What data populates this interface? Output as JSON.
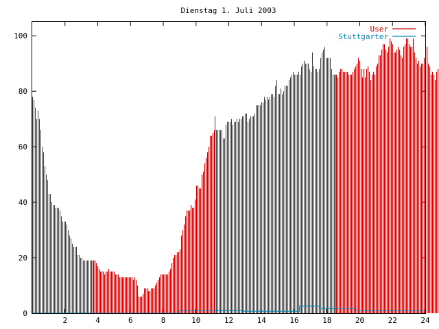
{
  "chart_data": {
    "type": "bar",
    "title": "Dienstag 1. Juli 2003",
    "xlabel": "",
    "ylabel": "",
    "xlim": [
      0,
      24
    ],
    "ylim": [
      0,
      105
    ],
    "x_ticks": [
      2,
      4,
      6,
      8,
      10,
      12,
      14,
      16,
      18,
      20,
      22,
      24
    ],
    "y_ticks": [
      0,
      20,
      40,
      60,
      80,
      100
    ],
    "grid": false,
    "legend_position": "top-right",
    "bin_minutes": 5,
    "series": [
      {
        "name": "User",
        "color": "#cc0000",
        "style": "impulses",
        "step_hours": 0.0833,
        "values": [
          78,
          77,
          74,
          70,
          73,
          70,
          66,
          60,
          58,
          53,
          50,
          48,
          43,
          43,
          40,
          39,
          39,
          38,
          38,
          38,
          37,
          35,
          33,
          33,
          33,
          32,
          30,
          28,
          27,
          25,
          24,
          24,
          24,
          21,
          21,
          20,
          20,
          19,
          19,
          19,
          19,
          19,
          19,
          19,
          19,
          19,
          19,
          18,
          17,
          16,
          15,
          15,
          15,
          14,
          15,
          15,
          16,
          15,
          15,
          15,
          15,
          14,
          14,
          14,
          13,
          13,
          13,
          13,
          13,
          13,
          13,
          13,
          13,
          13,
          12,
          13,
          12,
          10,
          6,
          6,
          6,
          7,
          9,
          9,
          9,
          8,
          8,
          9,
          9,
          9,
          10,
          11,
          12,
          13,
          14,
          14,
          14,
          14,
          14,
          14,
          15,
          16,
          18,
          20,
          21,
          21,
          22,
          22,
          23,
          28,
          30,
          32,
          35,
          37,
          37,
          37,
          39,
          38,
          38,
          41,
          46,
          46,
          45,
          45,
          50,
          51,
          54,
          56,
          58,
          60,
          64,
          64,
          65,
          66,
          71,
          66,
          66,
          66,
          66,
          66,
          63,
          63,
          68,
          69,
          69,
          69,
          70,
          68,
          69,
          69,
          70,
          69,
          70,
          70,
          71,
          71,
          72,
          72,
          69,
          70,
          71,
          71,
          71,
          72,
          75,
          75,
          75,
          75,
          76,
          76,
          78,
          77,
          78,
          77,
          78,
          79,
          79,
          78,
          82,
          84,
          79,
          79,
          81,
          79,
          80,
          82,
          82,
          82,
          84,
          85,
          86,
          87,
          86,
          86,
          86,
          87,
          86,
          89,
          90,
          91,
          90,
          90,
          90,
          88,
          87,
          94,
          89,
          88,
          88,
          87,
          88,
          92,
          94,
          95,
          96,
          92,
          92,
          92,
          92,
          88,
          86,
          86,
          86,
          86,
          85,
          87,
          88,
          88,
          87,
          87,
          87,
          87,
          86,
          86,
          86,
          87,
          88,
          89,
          90,
          92,
          91,
          88,
          85,
          88,
          85,
          88,
          89,
          87,
          84,
          86,
          87,
          86,
          89,
          90,
          93,
          93,
          95,
          97,
          97,
          95,
          94,
          96,
          99,
          98,
          97,
          94,
          94,
          95,
          96,
          95,
          93,
          92,
          96,
          97,
          99,
          99,
          97,
          96,
          96,
          99,
          94,
          92,
          90,
          91,
          89,
          90,
          90,
          92,
          91,
          96,
          90,
          89,
          86,
          87,
          86,
          84,
          87,
          88,
          87,
          85,
          83,
          83,
          80
        ]
      },
      {
        "name": "Stuttgarter",
        "color": "#0088bb",
        "style": "line",
        "points": [
          [
            0,
            0
          ],
          [
            9,
            0
          ],
          [
            9,
            1
          ],
          [
            12.9,
            1
          ],
          [
            12.9,
            0.7
          ],
          [
            16.3,
            0.7
          ],
          [
            16.3,
            2.6
          ],
          [
            17.6,
            2.6
          ],
          [
            17.6,
            1.7
          ],
          [
            19.7,
            1.7
          ],
          [
            19.7,
            1
          ],
          [
            24,
            1
          ]
        ]
      }
    ]
  }
}
